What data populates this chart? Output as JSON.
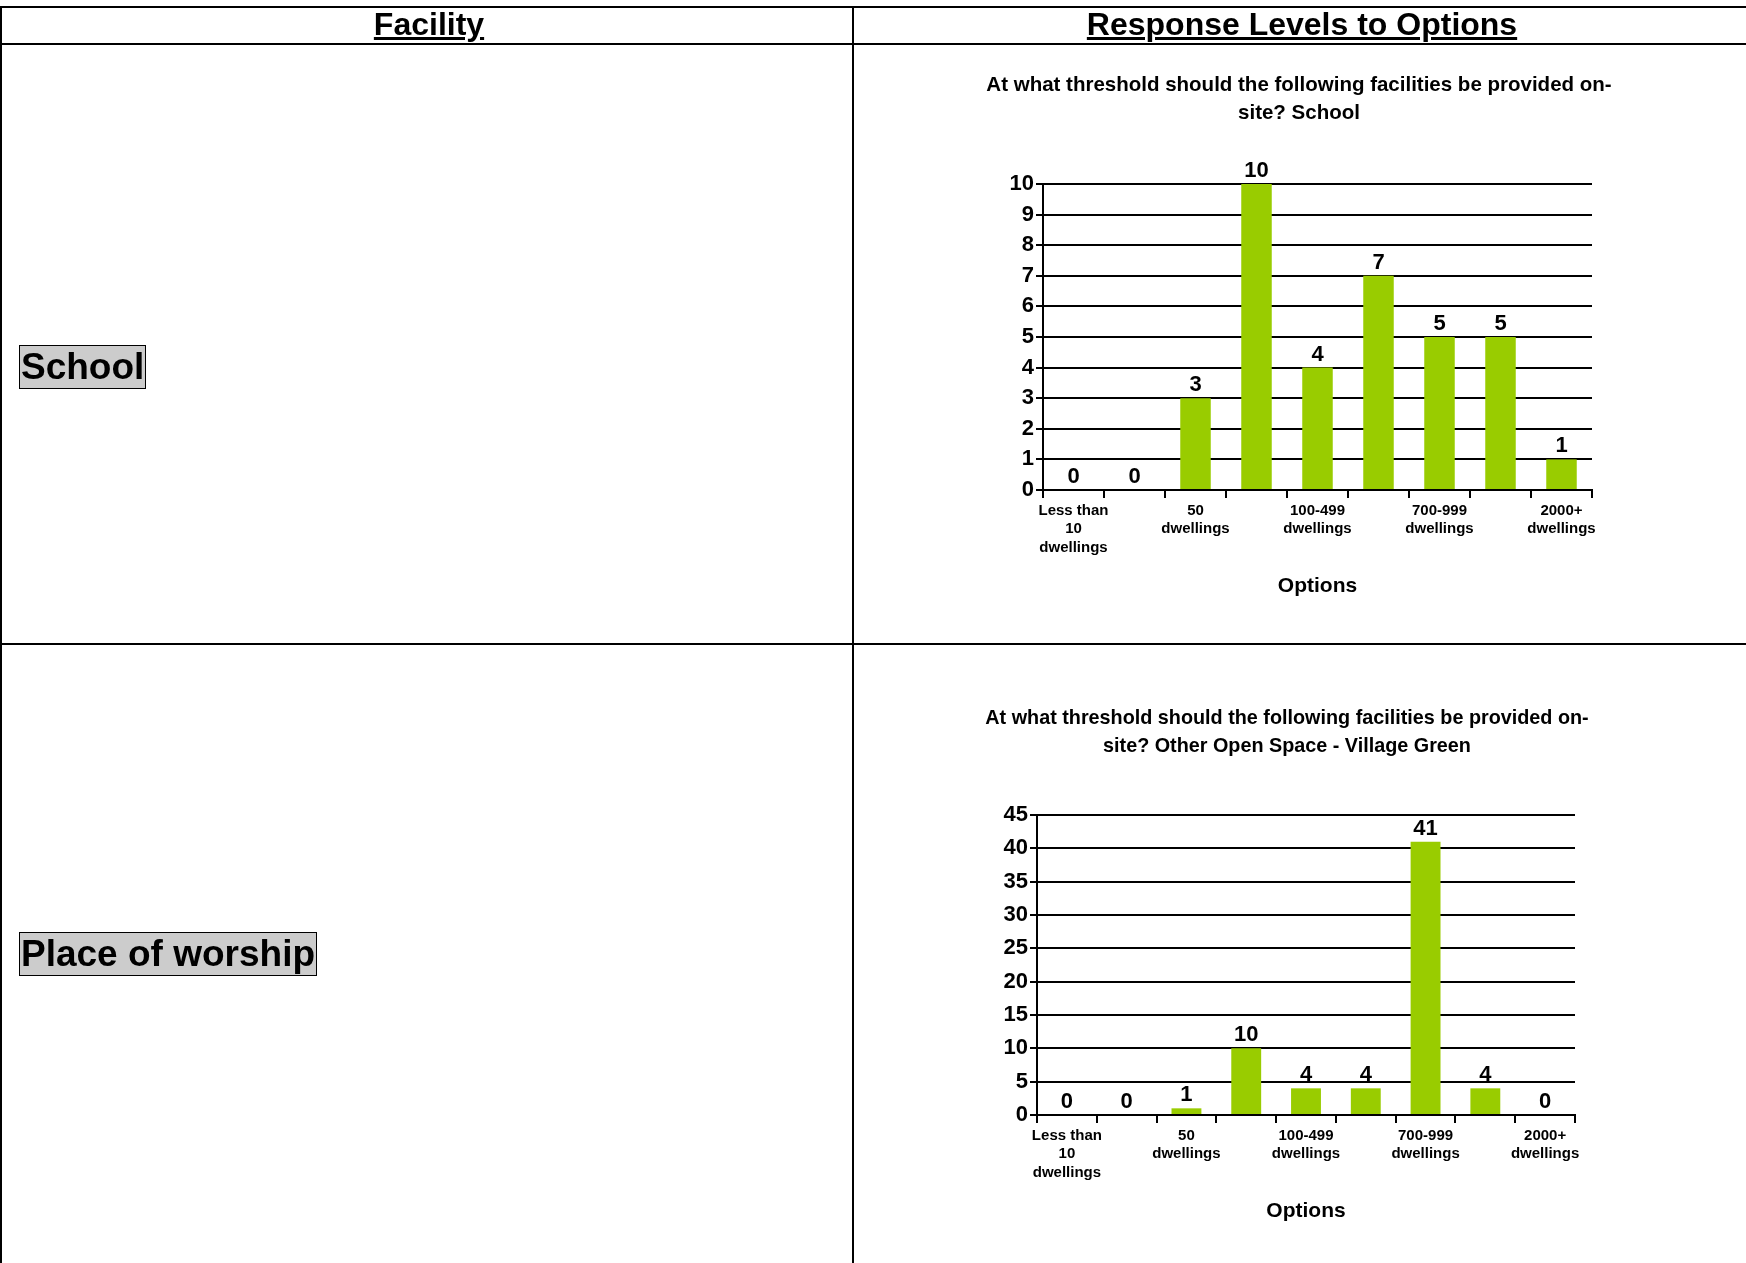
{
  "chart_data": [
    {
      "type": "other",
      "annotations": [
        "Facility",
        "Response Levels to Options"
      ]
    },
    {
      "type": "bar",
      "title": "At what threshold should the following facilities be provided on-site? School",
      "xlabel": "Options",
      "categories": [
        "Less than 10 dwellings",
        null,
        "50 dwellings",
        null,
        "100-499 dwellings",
        null,
        "700-999 dwellings",
        null,
        "2000+ dwellings"
      ],
      "values": [
        0,
        0,
        3,
        10,
        4,
        7,
        5,
        5,
        1
      ],
      "color": "#99cc00",
      "ylim": [
        0,
        10
      ],
      "yticks": [
        0,
        1,
        2,
        3,
        4,
        5,
        6,
        7,
        8,
        9,
        10
      ],
      "grid": "y",
      "data_labels": true,
      "annotations": [
        "School"
      ]
    },
    {
      "type": "bar",
      "title": "At what threshold should the following facilities be provided on-site? Other Open Space - Village Green",
      "xlabel": "Options",
      "categories": [
        "Less than 10 dwellings",
        null,
        "50 dwellings",
        null,
        "100-499 dwellings",
        null,
        "700-999 dwellings",
        null,
        "2000+ dwellings"
      ],
      "values": [
        0,
        0,
        1,
        10,
        4,
        4,
        41,
        4,
        0
      ],
      "color": "#99cc00",
      "ylim": [
        0,
        45
      ],
      "yticks": [
        0,
        5,
        10,
        15,
        20,
        25,
        30,
        35,
        40,
        45
      ],
      "grid": "y",
      "data_labels": true,
      "annotations": [
        "Place of worship"
      ]
    }
  ]
}
